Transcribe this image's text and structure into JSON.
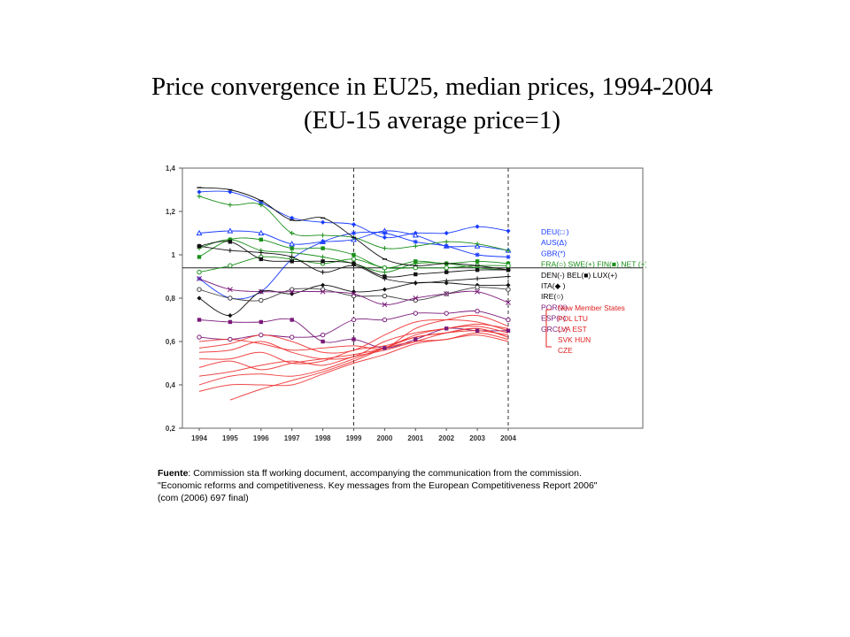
{
  "slide": {
    "title_line1": "Price convergence  in EU25, median prices, 1994-2004",
    "title_line2": "(EU-15 average price=1)"
  },
  "source": {
    "label": "Fuente",
    "line1": ": Commission sta ff working document, accompanying the communication from the commission.",
    "line2": "\"Economic reforms and competitiveness. Key messages from the European Competitiveness Report 2006\"",
    "line3": "(com (2006) 697 final)"
  },
  "chart_data": {
    "type": "line",
    "title": "",
    "xlabel": "",
    "ylabel": "",
    "x": [
      "1994",
      "1995",
      "1996",
      "1997",
      "1998",
      "1999",
      "2000",
      "2001",
      "2002",
      "2003",
      "2004"
    ],
    "ylim": [
      0.2,
      1.4
    ],
    "yticks": [
      0.2,
      0.4,
      0.6,
      0.8,
      1,
      1.2,
      1.4
    ],
    "ytick_labels": [
      "0,2",
      "0,4",
      "0,6",
      "0,8",
      "1",
      "1,2",
      "1,4"
    ],
    "reference_line_y": 0.94,
    "vertical_markers": [
      "1999",
      "2004"
    ],
    "grid": false,
    "legend_position": "right",
    "series_labels": [
      {
        "text": "DEU(□  )",
        "color": "#1a3cff"
      },
      {
        "text": "AUS(Δ)",
        "color": "#1a3cff"
      },
      {
        "text": "GBR(*)",
        "color": "#1a3cff"
      },
      {
        "text": "FRA(○) SWE(+) FIN(■) NET (+)",
        "color": "#1a8f1a"
      },
      {
        "text": "DEN(-) BEL(■) LUX(+)",
        "color": "#000000"
      },
      {
        "text": "ITA(◆ )",
        "color": "#000000"
      },
      {
        "text": "IRE(○)",
        "color": "#000000"
      },
      {
        "text": "POR(X)",
        "color": "#7a1a7a"
      },
      {
        "text": "ESP(○)",
        "color": "#7a1a7a"
      },
      {
        "text": "GRC(○)",
        "color": "#7a1a7a"
      }
    ],
    "nms_legend": {
      "title": "New Member States",
      "lines": [
        "POL  LTU",
        "LVA  EST",
        "SVK HUN",
        "CZE"
      ],
      "color": "#e02020"
    },
    "series": [
      {
        "group": "blue",
        "color": "#1a3cff",
        "marker": "diamond",
        "values": [
          1.29,
          1.29,
          1.24,
          1.17,
          1.15,
          1.14,
          1.08,
          1.1,
          1.1,
          1.13,
          1.11
        ]
      },
      {
        "group": "blue",
        "color": "#1a3cff",
        "marker": "triangle",
        "values": [
          1.1,
          1.11,
          1.1,
          1.05,
          1.06,
          1.07,
          1.11,
          1.09,
          1.04,
          1.04,
          1.02
        ]
      },
      {
        "group": "blue",
        "color": "#1a3cff",
        "marker": "star",
        "values": [
          0.89,
          0.8,
          0.83,
          0.98,
          1.06,
          1.1,
          1.1,
          1.06,
          1.04,
          1.0,
          0.99
        ]
      },
      {
        "group": "green",
        "color": "#1a8f1a",
        "marker": "plus",
        "values": [
          1.27,
          1.23,
          1.23,
          1.1,
          1.09,
          1.08,
          1.03,
          1.04,
          1.06,
          1.05,
          1.02
        ]
      },
      {
        "group": "green",
        "color": "#1a8f1a",
        "marker": "square",
        "values": [
          0.99,
          1.07,
          1.07,
          1.03,
          1.03,
          1.0,
          0.94,
          0.97,
          0.96,
          0.97,
          0.96
        ]
      },
      {
        "group": "green",
        "color": "#1a8f1a",
        "marker": "circle",
        "values": [
          0.92,
          0.95,
          0.99,
          0.98,
          0.96,
          0.98,
          0.94,
          0.94,
          0.94,
          0.95,
          0.95
        ]
      },
      {
        "group": "green",
        "color": "#1a8f1a",
        "marker": "plus",
        "values": [
          1.03,
          1.07,
          1.02,
          1.01,
          0.99,
          0.96,
          0.92,
          0.96,
          0.96,
          0.94,
          0.93
        ]
      },
      {
        "group": "black",
        "color": "#111111",
        "marker": "dash",
        "values": [
          1.31,
          1.3,
          1.25,
          1.16,
          1.17,
          1.08,
          0.98,
          0.95,
          0.96,
          0.95,
          0.93
        ]
      },
      {
        "group": "black",
        "color": "#111111",
        "marker": "square",
        "values": [
          1.04,
          1.06,
          0.98,
          0.97,
          0.97,
          0.96,
          0.9,
          0.91,
          0.92,
          0.93,
          0.93
        ]
      },
      {
        "group": "black",
        "color": "#111111",
        "marker": "plus",
        "values": [
          1.04,
          1.02,
          1.01,
          0.99,
          0.92,
          0.95,
          0.89,
          0.87,
          0.88,
          0.89,
          0.9
        ]
      },
      {
        "group": "black",
        "color": "#111111",
        "marker": "diamond",
        "values": [
          0.8,
          0.72,
          0.83,
          0.82,
          0.86,
          0.83,
          0.84,
          0.87,
          0.87,
          0.86,
          0.86
        ]
      },
      {
        "group": "black",
        "color": "#444444",
        "marker": "circle",
        "values": [
          0.84,
          0.8,
          0.79,
          0.84,
          0.84,
          0.81,
          0.81,
          0.79,
          0.82,
          0.85,
          0.84
        ]
      },
      {
        "group": "purple",
        "color": "#7a1a7a",
        "marker": "x",
        "values": [
          0.89,
          0.84,
          0.83,
          0.83,
          0.83,
          0.82,
          0.77,
          0.8,
          0.82,
          0.83,
          0.78
        ]
      },
      {
        "group": "purple",
        "color": "#7a1a7a",
        "marker": "square",
        "values": [
          0.7,
          0.69,
          0.69,
          0.7,
          0.6,
          0.61,
          0.57,
          0.61,
          0.66,
          0.65,
          0.65
        ]
      },
      {
        "group": "purple",
        "color": "#7a1a7a",
        "marker": "circle",
        "values": [
          0.62,
          0.61,
          0.63,
          0.62,
          0.63,
          0.7,
          0.7,
          0.73,
          0.73,
          0.74,
          0.7
        ]
      },
      {
        "group": "red",
        "color": "#ee3333",
        "marker": "none",
        "values": [
          0.6,
          0.61,
          0.59,
          0.56,
          0.57,
          0.58,
          0.57,
          0.66,
          0.7,
          0.72,
          0.67
        ]
      },
      {
        "group": "red",
        "color": "#ee3333",
        "marker": "none",
        "values": [
          0.57,
          0.59,
          0.63,
          0.6,
          0.55,
          0.56,
          0.63,
          0.69,
          0.7,
          0.69,
          0.65
        ]
      },
      {
        "group": "red",
        "color": "#ee3333",
        "marker": "none",
        "values": [
          0.55,
          0.56,
          0.6,
          0.55,
          0.52,
          0.53,
          0.6,
          0.64,
          0.66,
          0.68,
          0.66
        ]
      },
      {
        "group": "red",
        "color": "#ee3333",
        "marker": "none",
        "values": [
          0.52,
          0.52,
          0.55,
          0.5,
          0.51,
          0.56,
          0.58,
          0.62,
          0.64,
          0.65,
          0.63
        ]
      },
      {
        "group": "red",
        "color": "#ee3333",
        "marker": "none",
        "values": [
          0.48,
          0.51,
          0.47,
          0.5,
          0.52,
          0.54,
          0.57,
          0.63,
          0.66,
          0.67,
          0.64
        ]
      },
      {
        "group": "red",
        "color": "#ee3333",
        "marker": "none",
        "values": [
          0.44,
          0.46,
          0.49,
          0.51,
          0.49,
          0.53,
          0.56,
          0.6,
          0.64,
          0.66,
          0.62
        ]
      },
      {
        "group": "red",
        "color": "#ee3333",
        "marker": "none",
        "values": [
          0.4,
          0.44,
          0.45,
          0.44,
          0.47,
          0.52,
          0.57,
          0.6,
          0.61,
          0.64,
          0.61
        ]
      },
      {
        "group": "red",
        "color": "#ee3333",
        "marker": "none",
        "values": [
          0.37,
          0.4,
          0.4,
          0.4,
          0.45,
          0.5,
          0.54,
          0.59,
          0.61,
          0.63,
          0.6
        ]
      },
      {
        "group": "red",
        "color": "#ee3333",
        "marker": "none",
        "values": [
          null,
          0.33,
          0.38,
          0.42,
          0.46,
          0.51,
          0.57,
          0.62,
          0.64,
          0.66,
          0.62
        ]
      }
    ]
  }
}
